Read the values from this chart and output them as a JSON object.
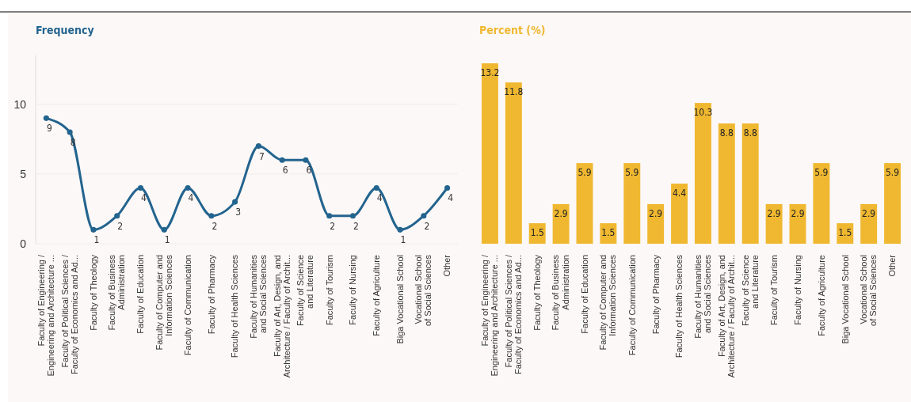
{
  "chart_data": [
    {
      "type": "line",
      "title": "Frequency",
      "categories": [
        "Faculty of Engineering / Engineering and Architecture ...",
        "Faculty of Political Sciences / Faculty of Economics and Ad...",
        "Faculty of Theology",
        "Faculty of Business Administration",
        "Faculty of Education",
        "Faculty of Computer and Information Sciences",
        "Faculty of Communication",
        "Faculty of Pharmacy",
        "Faculty of Health Sciences",
        "Faculty of Humanities and Social Sciences",
        "Faculty of Art, Design, and Architecture / Faculty of Archit...",
        "Faculty of Science and Literature",
        "Faculty of Tourism",
        "Faculty of Nursing",
        "Faculty of Agriculture",
        "Biga Vocational School",
        "Vocational School of Social Sciences",
        "Other"
      ],
      "series": [
        {
          "color": "#23648f",
          "values": [
            9,
            8,
            1,
            2,
            4,
            1,
            4,
            2,
            3,
            7,
            6,
            6,
            2,
            2,
            4,
            1,
            2,
            4
          ]
        }
      ],
      "ylim": [
        0,
        13.5
      ],
      "yticks": [
        0,
        5,
        10
      ],
      "grid": "y",
      "marker": "circle",
      "line_style": "solid",
      "data_labels": true
    },
    {
      "type": "bar",
      "title": "Percent (%)",
      "categories": [
        "Faculty of Engineering / Engineering and Architecture ...",
        "Faculty of Political Sciences / Faculty of Economics and Ad...",
        "Faculty of Theology",
        "Faculty of Business Administration",
        "Faculty of Education",
        "Faculty of Computer and Information Sciences",
        "Faculty of Communication",
        "Faculty of Pharmacy",
        "Faculty of Health Sciences",
        "Faculty of Humanities and Social Sciences",
        "Faculty of Art, Design, and Architecture / Faculty of Archit...",
        "Faculty of Science and Literature",
        "Faculty of Tourism",
        "Faculty of Nursing",
        "Faculty of Agriculture",
        "Biga Vocational School",
        "Vocational School of Social Sciences",
        "Other"
      ],
      "series": [
        {
          "color": "#f0b830",
          "values": [
            13.2,
            11.8,
            1.5,
            2.9,
            5.9,
            1.5,
            5.9,
            2.9,
            4.4,
            10.3,
            8.8,
            8.8,
            2.9,
            2.9,
            5.9,
            1.5,
            2.9,
            5.9
          ]
        }
      ],
      "tick_labels": "x",
      "data_labels": true
    }
  ]
}
